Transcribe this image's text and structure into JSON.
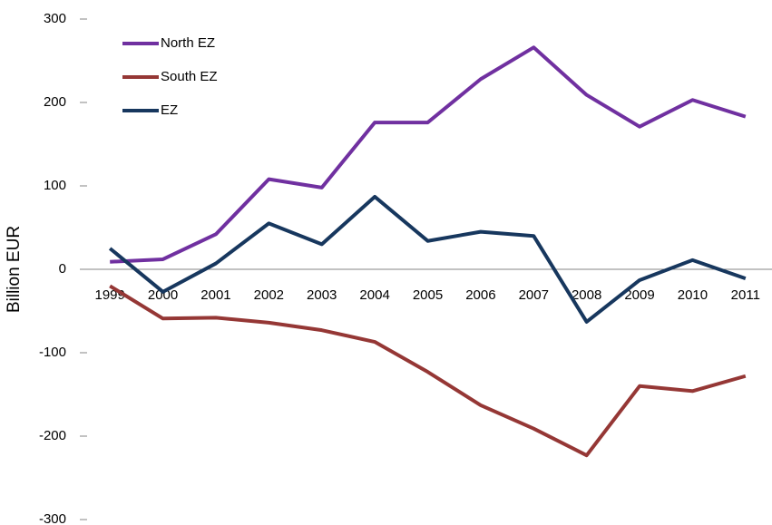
{
  "chart_data": {
    "type": "line",
    "ylabel": "Billion EUR",
    "categories": [
      "1999",
      "2000",
      "2001",
      "2002",
      "2003",
      "2004",
      "2005",
      "2006",
      "2007",
      "2008",
      "2009",
      "2010",
      "2011"
    ],
    "series": [
      {
        "name": "North EZ",
        "color": "#7030a0",
        "values": [
          9,
          12,
          42,
          108,
          98,
          176,
          176,
          228,
          266,
          209,
          171,
          203,
          183
        ]
      },
      {
        "name": "South EZ",
        "color": "#953735",
        "values": [
          -20,
          -59,
          -58,
          -64,
          -73,
          -87,
          -123,
          -163,
          -191,
          -223,
          -140,
          -146,
          -128
        ]
      },
      {
        "name": "EZ",
        "color": "#17375e",
        "values": [
          25,
          -27,
          7,
          55,
          30,
          87,
          34,
          45,
          40,
          -63,
          -13,
          11,
          -11
        ]
      }
    ],
    "ylim": [
      -300,
      300
    ],
    "yticks": [
      -300,
      -200,
      -100,
      0,
      100,
      200,
      300
    ],
    "legend": "upper left"
  }
}
